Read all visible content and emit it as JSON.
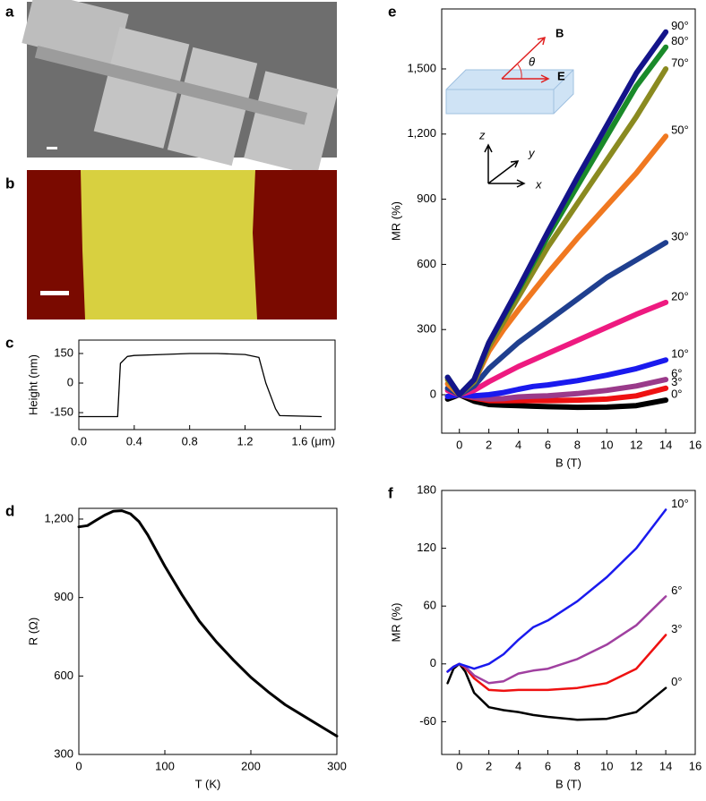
{
  "images": [
    {
      "panel": "a"
    },
    {
      "panel": "b"
    }
  ],
  "chart_data": [
    {
      "type": "line",
      "panel": "c",
      "ylabel": "Height (nm)",
      "x": [
        0,
        0.28,
        0.3,
        0.35,
        0.4,
        0.6,
        0.8,
        1.0,
        1.2,
        1.3,
        1.35,
        1.42,
        1.45,
        1.75
      ],
      "series": [
        {
          "name": "Height",
          "color": "#000000",
          "values": [
            -170,
            -170,
            100,
            135,
            140,
            145,
            150,
            150,
            145,
            130,
            0,
            -130,
            -165,
            -170
          ]
        }
      ],
      "xlim": [
        0,
        1.85
      ],
      "ylim": [
        -236,
        218
      ],
      "xticks": [
        {
          "value": 0,
          "label": "0.0"
        },
        0.4,
        0.8,
        1.2,
        {
          "value": 1.6,
          "label": "1.6 (μm)"
        }
      ],
      "yticks": [
        -150,
        0,
        150
      ]
    },
    {
      "type": "line",
      "panel": "d",
      "xlabel": "T (K)",
      "ylabel": "R (Ω)",
      "x": [
        0,
        10,
        20,
        30,
        40,
        50,
        60,
        70,
        80,
        90,
        100,
        120,
        140,
        160,
        180,
        200,
        220,
        240,
        260,
        280,
        300
      ],
      "series": [
        {
          "name": "R",
          "color": "#000000",
          "values": [
            1170,
            1175,
            1195,
            1215,
            1230,
            1232,
            1220,
            1190,
            1140,
            1080,
            1020,
            910,
            810,
            730,
            660,
            595,
            540,
            490,
            450,
            410,
            370
          ]
        }
      ],
      "xlim": [
        0,
        300
      ],
      "ylim": [
        300,
        1241
      ],
      "xticks": [
        0,
        100,
        200,
        300
      ],
      "yticks": [
        300,
        600,
        900,
        {
          "value": 1200,
          "label": "1,200"
        }
      ]
    },
    {
      "type": "line",
      "panel": "e",
      "xlabel": "B (T)",
      "ylabel": "MR (%)",
      "annotations": [
        "B",
        "θ",
        "E",
        "z",
        "y",
        "x"
      ],
      "x": [
        -0.8,
        0,
        1,
        2,
        3,
        4,
        5,
        6,
        8,
        10,
        12,
        14
      ],
      "series": [
        {
          "name": "0°",
          "color": "#000000",
          "values": [
            -20,
            0,
            -30,
            -45,
            -48,
            -50,
            -53,
            -55,
            -58,
            -57,
            -50,
            -25
          ]
        },
        {
          "name": "3°",
          "color": "#ee1111",
          "values": [
            -8,
            0,
            -15,
            -27,
            -28,
            -27,
            -27,
            -27,
            -25,
            -20,
            -5,
            30
          ]
        },
        {
          "name": "6°",
          "color": "#9a3a8a",
          "values": [
            -8,
            0,
            -12,
            -20,
            -18,
            -10,
            -7,
            -5,
            5,
            20,
            40,
            70
          ]
        },
        {
          "name": "10°",
          "color": "#1a1aee",
          "values": [
            -8,
            0,
            -5,
            0,
            10,
            25,
            38,
            45,
            65,
            90,
            120,
            160
          ]
        },
        {
          "name": "20°",
          "color": "#ee1a80",
          "values": [
            20,
            0,
            20,
            60,
            95,
            130,
            160,
            190,
            250,
            310,
            370,
            425
          ]
        },
        {
          "name": "30°",
          "color": "#1f3f8f",
          "values": [
            30,
            0,
            40,
            120,
            180,
            240,
            290,
            340,
            440,
            540,
            620,
            700
          ]
        },
        {
          "name": "50°",
          "color": "#f07820",
          "values": [
            50,
            0,
            60,
            200,
            300,
            390,
            475,
            560,
            720,
            870,
            1020,
            1190
          ]
        },
        {
          "name": "70°",
          "color": "#8a8a20",
          "values": [
            70,
            0,
            60,
            220,
            335,
            450,
            565,
            680,
            880,
            1080,
            1280,
            1500
          ]
        },
        {
          "name": "80°",
          "color": "#1a8a2a",
          "values": [
            80,
            0,
            70,
            240,
            360,
            480,
            605,
            730,
            960,
            1190,
            1420,
            1600
          ]
        },
        {
          "name": "90°",
          "color": "#14148a",
          "values": [
            80,
            0,
            70,
            240,
            365,
            490,
            620,
            750,
            1000,
            1240,
            1480,
            1670
          ]
        }
      ],
      "xlim": [
        -1.2,
        16
      ],
      "ylim": [
        -177,
        1776
      ],
      "xticks": [
        0,
        2,
        4,
        6,
        8,
        10,
        12,
        14,
        16
      ],
      "yticks": [
        0,
        300,
        600,
        900,
        {
          "value": 1200,
          "label": "1,200"
        },
        {
          "value": 1500,
          "label": "1,500"
        }
      ]
    },
    {
      "type": "line",
      "panel": "f",
      "xlabel": "B (T)",
      "ylabel": "MR (%)",
      "x": [
        -0.8,
        -0.4,
        0,
        0.4,
        1,
        2,
        3,
        4,
        5,
        6,
        8,
        10,
        12,
        14
      ],
      "series": [
        {
          "name": "0°",
          "color": "#000000",
          "values": [
            -20,
            -5,
            0,
            -8,
            -30,
            -45,
            -48,
            -50,
            -53,
            -55,
            -58,
            -57,
            -50,
            -25
          ]
        },
        {
          "name": "3°",
          "color": "#ee1111",
          "values": [
            -8,
            -3,
            0,
            -4,
            -15,
            -27,
            -28,
            -27,
            -27,
            -27,
            -25,
            -20,
            -5,
            30
          ]
        },
        {
          "name": "6°",
          "color": "#a040a0",
          "values": [
            -8,
            -3,
            0,
            -3,
            -12,
            -20,
            -18,
            -10,
            -7,
            -5,
            5,
            20,
            40,
            70
          ]
        },
        {
          "name": "10°",
          "color": "#1a1aee",
          "values": [
            -8,
            -3,
            0,
            -2,
            -5,
            0,
            10,
            25,
            38,
            45,
            65,
            90,
            120,
            160
          ]
        }
      ],
      "xlim": [
        -1.2,
        16
      ],
      "ylim": [
        -94,
        180
      ],
      "xticks": [
        0,
        2,
        4,
        6,
        8,
        10,
        12,
        14,
        16
      ],
      "yticks": [
        -60,
        0,
        60,
        120,
        180
      ]
    }
  ]
}
